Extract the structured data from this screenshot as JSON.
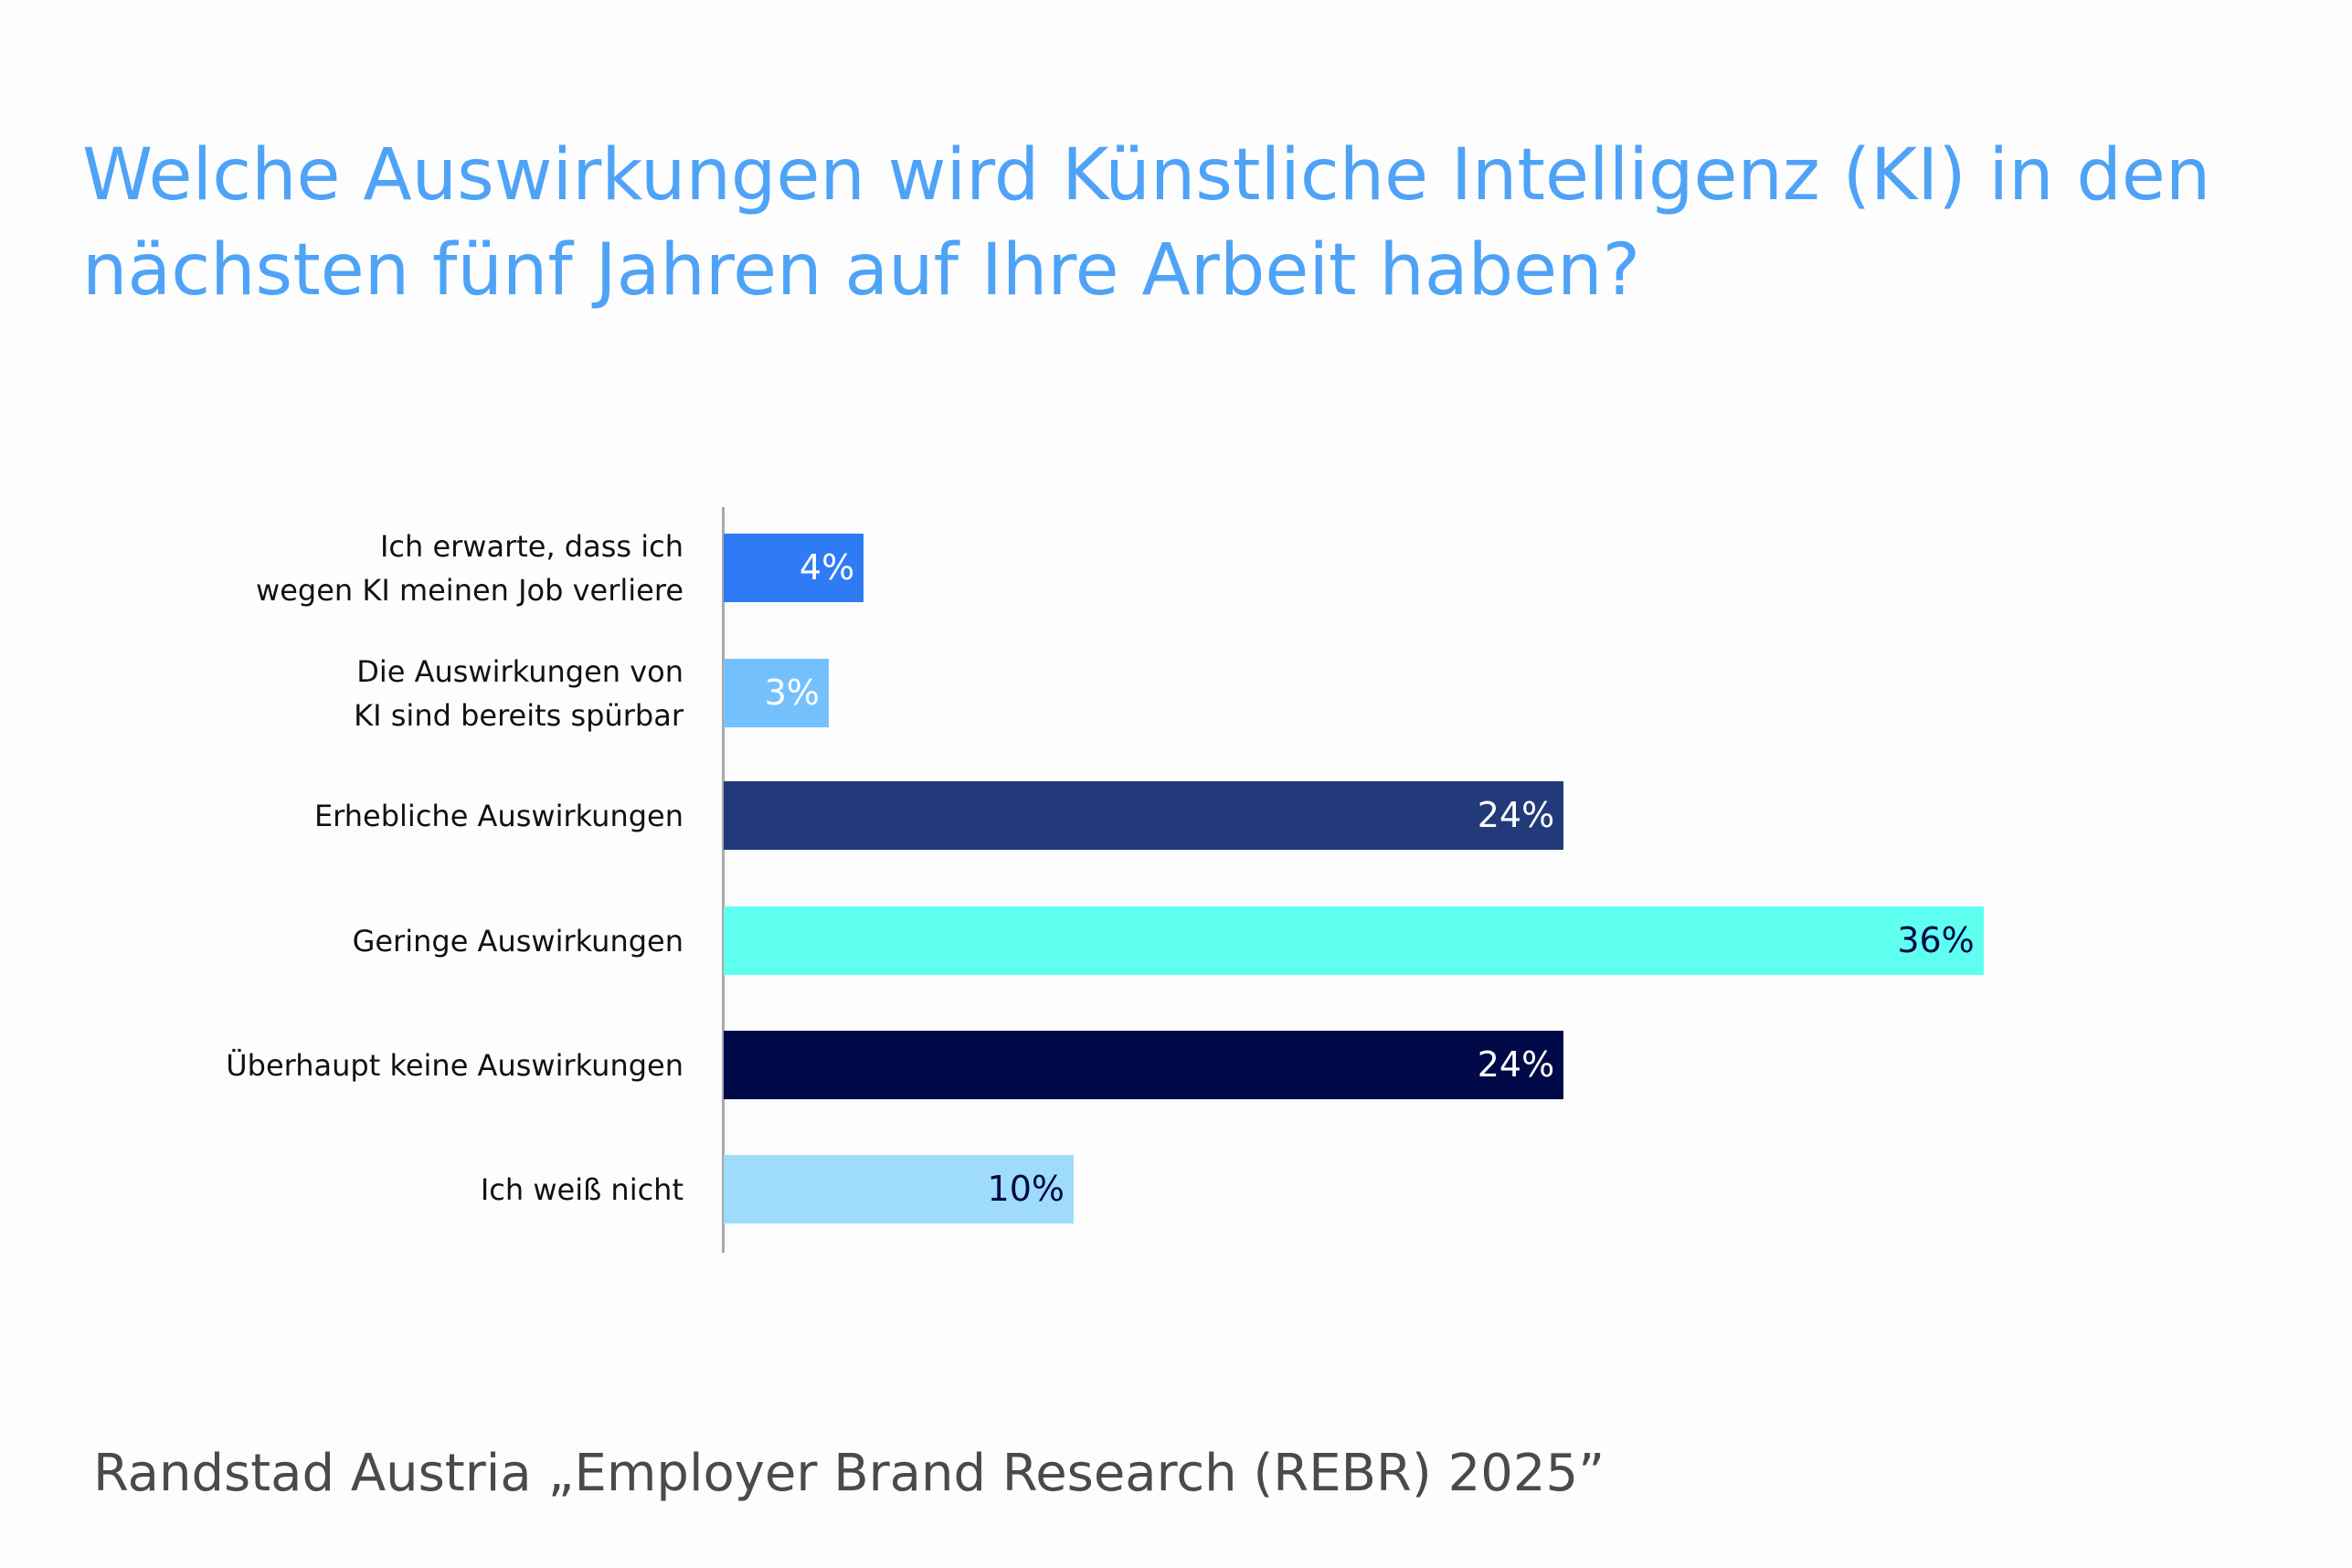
{
  "title_lines": [
    "Welche Auswirkungen wird Künstliche Intelligenz (KI) in den",
    "nächsten fünf Jahren auf Ihre Arbeit haben?"
  ],
  "footer": "Randstad Austria „Employer Brand Research (REBR) 2025”",
  "chart_data": {
    "type": "bar",
    "orientation": "horizontal",
    "title": "Welche Auswirkungen wird Künstliche Intelligenz (KI) in den nächsten fünf Jahren auf Ihre Arbeit haben?",
    "categories": [
      [
        "Ich erwarte, dass ich",
        "wegen KI meinen Job verliere"
      ],
      [
        "Die Auswirkungen von",
        "KI sind bereits spürbar"
      ],
      [
        "Erhebliche Auswirkungen"
      ],
      [
        "Geringe Auswirkungen"
      ],
      [
        "Überhaupt keine Auswirkungen"
      ],
      [
        "Ich weiß nicht"
      ]
    ],
    "values": [
      4,
      3,
      24,
      36,
      24,
      10
    ],
    "labels": [
      "4%",
      "3%",
      "24%",
      "36%",
      "24%",
      "10%"
    ],
    "colors": [
      "#2f7bf5",
      "#74c0fc",
      "#233a7a",
      "#5ffff0",
      "#000a48",
      "#9fdcfb"
    ],
    "label_colors": [
      "#ffffff",
      "#ffffff",
      "#ffffff",
      "#000a48",
      "#ffffff",
      "#000a48"
    ],
    "xlabel": "",
    "ylabel": "",
    "xlim": [
      0,
      36
    ],
    "grid": false,
    "legend": "none"
  }
}
